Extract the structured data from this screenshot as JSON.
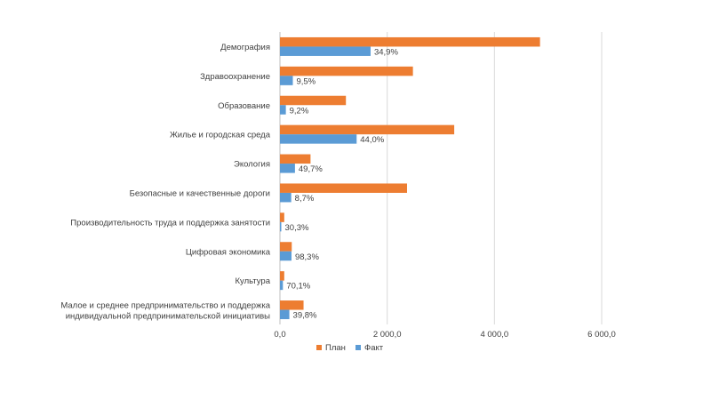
{
  "chart_data": {
    "type": "bar",
    "orientation": "horizontal",
    "categories": [
      "Демография",
      "Здравоохранение",
      "Образование",
      "Жилье и городская среда",
      "Экология",
      "Безопасные и качественные дороги",
      "Производительность труда и поддержка занятости",
      "Цифровая экономика",
      "Культура",
      [
        "Малое и среднее предпринимательство и поддержка",
        "индивидуальной предпринимательской инициативы"
      ]
    ],
    "series": [
      {
        "name": "План",
        "color": "#ED7D31",
        "values": [
          4850,
          2480,
          1230,
          3250,
          570,
          2370,
          80,
          220,
          80,
          440
        ]
      },
      {
        "name": "Факт",
        "color": "#5B9BD5",
        "values": [
          1690,
          240,
          110,
          1430,
          280,
          210,
          25,
          215,
          55,
          175
        ],
        "labels": [
          "34,9%",
          "9,5%",
          "9,2%",
          "44,0%",
          "49,7%",
          "8,7%",
          "30,3%",
          "98,3%",
          "70,1%",
          "39,8%"
        ]
      }
    ],
    "xlim": [
      0,
      6000
    ],
    "xticks": [
      0,
      2000,
      4000,
      6000
    ],
    "xtick_labels": [
      "0,0",
      "2 000,0",
      "4 000,0",
      "6 000,0"
    ],
    "grid": true,
    "legend_position": "bottom"
  }
}
